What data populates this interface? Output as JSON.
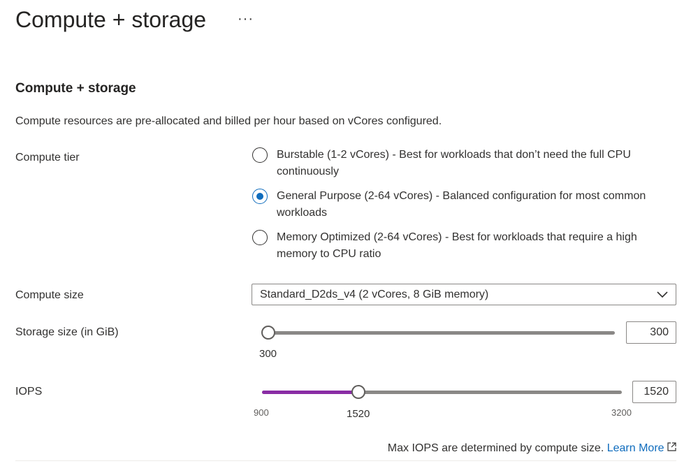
{
  "header": {
    "title": "Compute + storage",
    "more_label": "···"
  },
  "section": {
    "heading": "Compute + storage",
    "description": "Compute resources are pre-allocated and billed per hour based on vCores configured."
  },
  "compute_tier": {
    "label": "Compute tier",
    "selected": 1,
    "options": [
      {
        "label": "Burstable (1-2 vCores) - Best for workloads that don’t need the full CPU continuously"
      },
      {
        "label": "General Purpose (2-64 vCores) - Balanced configuration for most common workloads"
      },
      {
        "label": "Memory Optimized (2-64 vCores) - Best for workloads that require a high memory to CPU ratio"
      }
    ]
  },
  "compute_size": {
    "label": "Compute size",
    "value": "Standard_D2ds_v4 (2 vCores, 8 GiB memory)"
  },
  "storage": {
    "label": "Storage size (in GiB)",
    "value": "300",
    "value_label": "300"
  },
  "iops": {
    "label": "IOPS",
    "value": "1520",
    "min": "900",
    "max": "3200",
    "value_label": "1520",
    "fill_color": "#8a2da5"
  },
  "footer": {
    "text": "Max IOPS are determined by compute size.",
    "link": "Learn More"
  }
}
